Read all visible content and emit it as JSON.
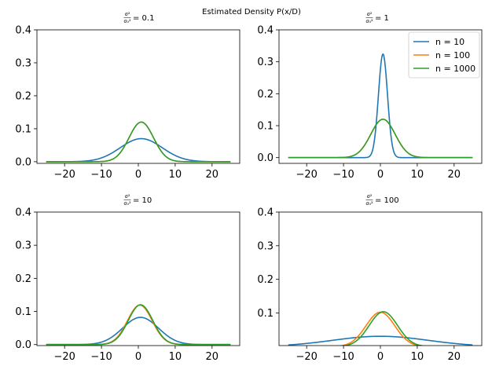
{
  "figure": {
    "suptitle": "Estimated Density P(x/D)"
  },
  "legend_series": [
    "n = 10",
    "n = 100",
    "n = 1000"
  ],
  "colors": {
    "n = 10": "#1f77b4",
    "n = 100": "#ff7f0e",
    "n = 1000": "#2ca02c"
  },
  "chart_data": [
    {
      "type": "line",
      "title": "σ²/σ₀² = 0.1",
      "title_tex": {
        "num": "σ²",
        "den": "σ₀²",
        "value": "0.1"
      },
      "xlim": [
        -27.5,
        27.5
      ],
      "ylim": [
        -0.005,
        0.4
      ],
      "xticks": [
        -20,
        -10,
        0,
        10,
        20
      ],
      "yticks": [
        0.0,
        0.1,
        0.2,
        0.3,
        0.4
      ],
      "legend": "none",
      "series": [
        {
          "name": "n = 10",
          "mu": 0.8,
          "sigma": 5.7,
          "xrange": [
            -25,
            25
          ]
        },
        {
          "name": "n = 100",
          "mu": 0.8,
          "sigma": 3.32,
          "xrange": [
            -25,
            25
          ]
        },
        {
          "name": "n = 1000",
          "mu": 0.8,
          "sigma": 3.32,
          "xrange": [
            -25,
            25
          ]
        }
      ]
    },
    {
      "type": "line",
      "title": "σ²/σ₀² = 1",
      "title_tex": {
        "num": "σ²",
        "den": "σ₀²",
        "value": "1"
      },
      "xlim": [
        -27.5,
        27.5
      ],
      "ylim": [
        -0.018,
        0.4
      ],
      "xticks": [
        -20,
        -10,
        0,
        10,
        20
      ],
      "yticks": [
        0.0,
        0.1,
        0.2,
        0.3,
        0.4
      ],
      "legend": "upper right",
      "series": [
        {
          "name": "n = 10",
          "mu": 0.7,
          "sigma": 1.23,
          "xrange": [
            -25,
            25
          ]
        },
        {
          "name": "n = 100",
          "mu": 0.7,
          "sigma": 3.32,
          "xrange": [
            -25,
            25
          ]
        },
        {
          "name": "n = 1000",
          "mu": 0.7,
          "sigma": 3.32,
          "xrange": [
            -25,
            25
          ]
        }
      ]
    },
    {
      "type": "line",
      "title": "σ²/σ₀² = 10",
      "title_tex": {
        "num": "σ²",
        "den": "σ₀²",
        "value": "10"
      },
      "xlim": [
        -27.5,
        27.5
      ],
      "ylim": [
        -0.003,
        0.4
      ],
      "xticks": [
        -20,
        -10,
        0,
        10,
        20
      ],
      "yticks": [
        0.0,
        0.1,
        0.2,
        0.3,
        0.4
      ],
      "legend": "none",
      "series": [
        {
          "name": "n = 10",
          "mu": 0.6,
          "sigma": 4.85,
          "xrange": [
            -25,
            25
          ]
        },
        {
          "name": "n = 100",
          "mu": 0.4,
          "sigma": 3.35,
          "xrange": [
            -25,
            25
          ]
        },
        {
          "name": "n = 1000",
          "mu": 0.6,
          "sigma": 3.32,
          "xrange": [
            -25,
            25
          ]
        }
      ]
    },
    {
      "type": "line",
      "title": "σ²/σ₀² = 100",
      "title_tex": {
        "num": "σ²",
        "den": "σ₀²",
        "value": "100"
      },
      "xlim": [
        -27.5,
        27.5
      ],
      "ylim": [
        0.003,
        0.4
      ],
      "xticks": [
        -20,
        -10,
        0,
        10,
        20
      ],
      "yticks": [
        0.1,
        0.2,
        0.3,
        0.4
      ],
      "legend": "none",
      "series": [
        {
          "name": "n = 10",
          "mu": 0.0,
          "sigma": 13.0,
          "xrange": [
            -25,
            25
          ]
        },
        {
          "name": "n = 100",
          "mu": 0.0,
          "sigma": 3.9,
          "xrange": [
            -25,
            25
          ]
        },
        {
          "name": "n = 1000",
          "mu": 0.8,
          "sigma": 3.85,
          "xrange": [
            -25,
            25
          ]
        }
      ]
    }
  ]
}
